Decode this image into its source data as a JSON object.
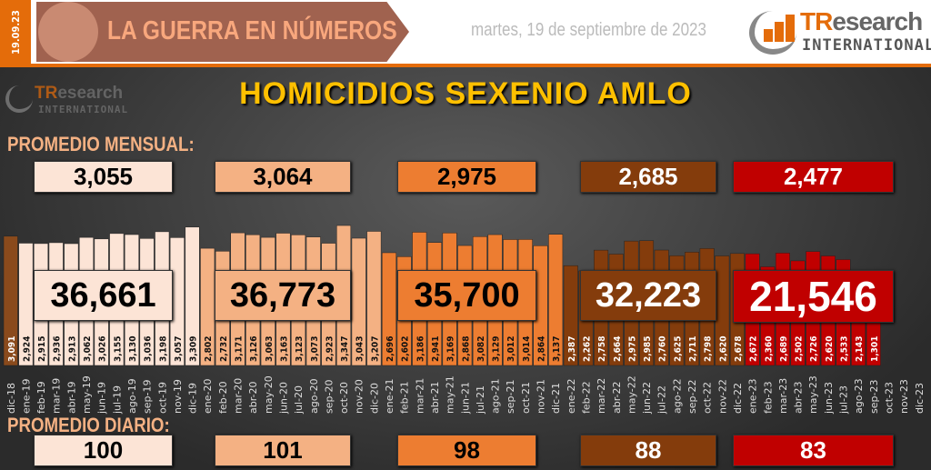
{
  "header": {
    "date_tag": "19.09.23",
    "banner_title": "LA GUERRA EN NÚMEROS",
    "date": "martes, 19 de septiembre de 2023",
    "logo_text_a": "TR",
    "logo_text_b": "esearch",
    "logo_sub": "INTERNATIONAL"
  },
  "sections": {
    "monthly_label": "PROMEDIO MENSUAL:",
    "daily_label": "PROMEDIO DIARIO:"
  },
  "colors": {
    "dic18": "#8a4a1c",
    "y2019": "#fce4d6",
    "y2020": "#f4b183",
    "y2021": "#ed7d31",
    "y2022": "#843c0c",
    "y2023": "#c00000",
    "title": "#ffc000",
    "accent": "#e46c0a"
  },
  "groups": [
    {
      "year": "2019",
      "monthly_avg": "3,055",
      "total": "36,661",
      "daily_avg": "100"
    },
    {
      "year": "2020",
      "monthly_avg": "3,064",
      "total": "36,773",
      "daily_avg": "101"
    },
    {
      "year": "2021",
      "monthly_avg": "2,975",
      "total": "35,700",
      "daily_avg": "98"
    },
    {
      "year": "2022",
      "monthly_avg": "2,685",
      "total": "32,223",
      "daily_avg": "88"
    },
    {
      "year": "2023",
      "monthly_avg": "2,477",
      "total": "21,546",
      "daily_avg": "83"
    }
  ],
  "chart_data": {
    "type": "bar",
    "title": "HOMICIDIOS SEXENIO AMLO",
    "categories": [
      "dic-18",
      "ene-19",
      "feb-19",
      "mar-19",
      "abr-19",
      "may-19",
      "jun-19",
      "jul-19",
      "ago-19",
      "sep-19",
      "oct-19",
      "nov-19",
      "dic-19",
      "ene-20",
      "feb-20",
      "mar-20",
      "abr-20",
      "may-20",
      "jun-20",
      "jul-20",
      "ago-20",
      "sep-20",
      "oct-20",
      "nov-20",
      "dic-20",
      "ene-21",
      "feb-21",
      "mar-21",
      "abr-21",
      "may-21",
      "jun-21",
      "jul-21",
      "ago-21",
      "sep-21",
      "oct-21",
      "nov-21",
      "dic-21",
      "ene-22",
      "feb-22",
      "mar-22",
      "abr-22",
      "may-22",
      "jun-22",
      "jul-22",
      "ago-22",
      "sep-22",
      "oct-22",
      "nov-22",
      "dic-22",
      "ene-23",
      "feb-23",
      "mar-23",
      "abr-23",
      "may-23",
      "jun-23",
      "jul-23",
      "ago-23",
      "sep-23",
      "oct-23",
      "nov-23",
      "dic-23"
    ],
    "values": [
      3091,
      2924,
      2915,
      2936,
      2913,
      3062,
      3026,
      3155,
      3130,
      3036,
      3198,
      3057,
      3309,
      2802,
      2732,
      3171,
      3126,
      3063,
      3163,
      3123,
      3073,
      2923,
      3347,
      3043,
      3207,
      2696,
      2602,
      3186,
      2941,
      3169,
      2868,
      3082,
      3129,
      3012,
      3014,
      2864,
      3137,
      2387,
      2262,
      2758,
      2664,
      2975,
      2985,
      2760,
      2625,
      2711,
      2798,
      2620,
      2678,
      2672,
      2360,
      2689,
      2502,
      2726,
      2620,
      2533,
      2143,
      1301,
      null,
      null,
      null
    ],
    "labels": [
      "3,091",
      "2,924",
      "2,915",
      "2,936",
      "2,913",
      "3,062",
      "3,026",
      "3,155",
      "3,130",
      "3,036",
      "3,198",
      "3,057",
      "3,309",
      "2,802",
      "2,732",
      "3,171",
      "3,126",
      "3,063",
      "3,163",
      "3,123",
      "3,073",
      "2,923",
      "3,347",
      "3,043",
      "3,207",
      "2,696",
      "2,602",
      "3,186",
      "2,941",
      "3,169",
      "2,868",
      "3,082",
      "3,129",
      "3,012",
      "3,014",
      "2,864",
      "3,137",
      "2,387",
      "2,262",
      "2,758",
      "2,664",
      "2,975",
      "2,985",
      "2,760",
      "2,625",
      "2,711",
      "2,798",
      "2,620",
      "2,678",
      "2,672",
      "2,360",
      "2,689",
      "2,502",
      "2,726",
      "2,620",
      "2,533",
      "2,143",
      "1,301",
      "",
      "",
      ""
    ],
    "grid": false,
    "legend": "none"
  }
}
